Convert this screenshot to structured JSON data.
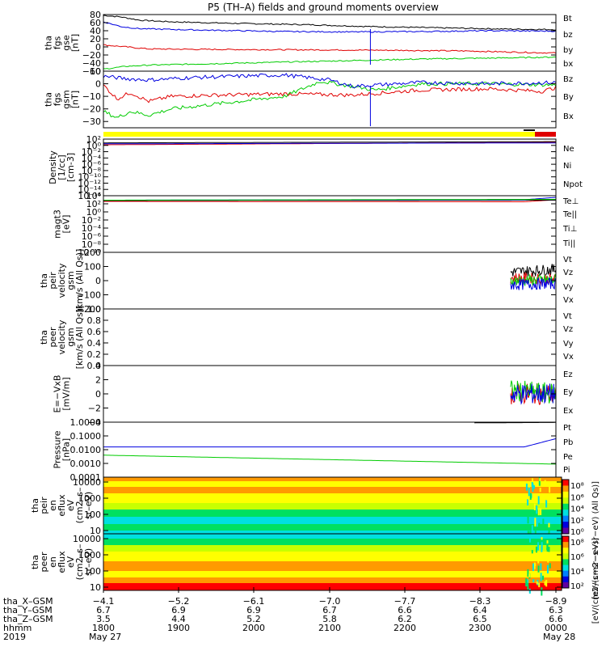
{
  "title": "P5 (TH–A) fields and ground moments overview",
  "colors": {
    "black": "#000000",
    "red": "#e00000",
    "green": "#00cc00",
    "blue": "#0000e0",
    "yellow": "#ffff00",
    "spec_orange": "#ff9a00",
    "spec_yellowgreen": "#c8ff00",
    "spec_green": "#00e060",
    "spec_cyan": "#00e0e0",
    "spec_red": "#ff0000"
  },
  "chart_data": [
    {
      "type": "line",
      "panel": "fgs_gse",
      "ylabel": [
        "tha",
        "fgs",
        "gse",
        "[nT]"
      ],
      "ylim": [
        -60,
        80
      ],
      "yticks": [
        "80",
        "60",
        "40",
        "20",
        "0",
        "−20",
        "−40",
        "−60"
      ],
      "ytick_values": [
        80,
        60,
        40,
        20,
        0,
        -20,
        -40,
        -60
      ],
      "xlim": [
        0,
        1
      ],
      "series": [
        {
          "name": "Bt",
          "color": "#000000",
          "x": [
            0,
            0.04,
            0.08,
            0.15,
            0.3,
            0.45,
            0.6,
            0.7,
            0.8,
            0.9,
            1.0
          ],
          "y": [
            78,
            74,
            66,
            62,
            58,
            55,
            50,
            48,
            46,
            44,
            43
          ]
        },
        {
          "name": "bz",
          "color": "#e00000",
          "x": [
            0,
            0.05,
            0.1,
            0.2,
            0.4,
            0.6,
            0.8,
            0.95,
            1.0
          ],
          "y": [
            5,
            0,
            -5,
            -6,
            -7,
            -8,
            -10,
            -14,
            -15
          ]
        },
        {
          "name": "by",
          "color": "#00cc00",
          "x": [
            0,
            0.05,
            0.1,
            0.3,
            0.5,
            0.7,
            0.9,
            1.0
          ],
          "y": [
            -55,
            -48,
            -45,
            -40,
            -35,
            -30,
            -27,
            -25
          ]
        },
        {
          "name": "bx",
          "color": "#0000e0",
          "x": [
            0,
            0.04,
            0.08,
            0.2,
            0.4,
            0.55,
            0.7,
            0.85,
            1.0
          ],
          "y": [
            62,
            50,
            45,
            42,
            38,
            37,
            38,
            40,
            39
          ]
        }
      ]
    },
    {
      "type": "line",
      "panel": "fgs_gsm",
      "ylabel": [
        "tha",
        "fgs",
        "gsm",
        "[nT]"
      ],
      "ylim": [
        -35,
        10
      ],
      "yticks": [
        "10",
        "0",
        "−10",
        "−20",
        "−30"
      ],
      "ytick_values": [
        10,
        0,
        -10,
        -20,
        -30
      ],
      "xlim": [
        0,
        1
      ],
      "series": [
        {
          "name": "Bz",
          "color": "#e00000",
          "x": [
            0,
            0.03,
            0.06,
            0.1,
            0.15,
            0.25,
            0.4,
            0.55,
            0.7,
            0.85,
            0.97,
            1.0
          ],
          "y": [
            -1,
            -12,
            -7,
            -14,
            -10,
            -9,
            -8,
            -9,
            -5,
            -4,
            -6,
            -3
          ]
        },
        {
          "name": "By",
          "color": "#00cc00",
          "x": [
            0,
            0.03,
            0.06,
            0.1,
            0.15,
            0.25,
            0.4,
            0.48,
            0.6,
            0.7,
            0.85,
            1.0
          ],
          "y": [
            -22,
            -27,
            -22,
            -25,
            -20,
            -16,
            -10,
            2,
            -5,
            0,
            0,
            -1
          ]
        },
        {
          "name": "Bx",
          "color": "#0000e0",
          "x": [
            0,
            0.05,
            0.1,
            0.2,
            0.3,
            0.4,
            0.5,
            0.55,
            0.7,
            0.85,
            1.0
          ],
          "y": [
            6,
            4,
            3,
            5,
            6,
            7,
            3,
            -2,
            1,
            0,
            1
          ]
        }
      ]
    },
    {
      "type": "line",
      "panel": "density",
      "ylabel": [
        "Density",
        "[1/cc]",
        "[cm-3]"
      ],
      "ylim_log": [
        -16,
        2
      ],
      "yticks": [
        "10²",
        "10⁰",
        "10⁻²",
        "10⁻⁴",
        "10⁻⁶",
        "10⁻⁸",
        "10⁻¹⁰",
        "10⁻¹²",
        "10⁻¹⁴",
        "10⁻¹⁶"
      ],
      "ytick_values": [
        2,
        0,
        -2,
        -4,
        -6,
        -8,
        -10,
        -12,
        -14,
        -16
      ],
      "series": [
        {
          "name": "Ne",
          "color": "#e00000",
          "x": [
            0,
            1
          ],
          "y_log": [
            0.2,
            1.0
          ]
        },
        {
          "name": "Ni",
          "color": "#000000",
          "x": [
            0,
            1
          ],
          "y_log": [
            0.8,
            1.2
          ]
        },
        {
          "name": "Npot",
          "color": "#0000e0",
          "x": [
            0,
            1
          ],
          "y_log": [
            0.5,
            0.8
          ]
        }
      ]
    },
    {
      "type": "line",
      "panel": "temperature",
      "ylabel": [
        "magt3",
        "[eV]"
      ],
      "ylim_log": [
        -10,
        4
      ],
      "yticks": [
        "10⁴",
        "10²",
        "10⁰",
        "10⁻²",
        "10⁻⁴",
        "10⁻⁶",
        "10⁻⁸",
        "10⁻¹⁰"
      ],
      "ytick_values": [
        4,
        2,
        0,
        -2,
        -4,
        -6,
        -8,
        -10
      ],
      "series": [
        {
          "name": "Te⊥",
          "color": "#e00000",
          "x": [
            0,
            0.93,
            1
          ],
          "y_log": [
            2.6,
            2.5,
            3.0
          ]
        },
        {
          "name": "Te||",
          "color": "#000000",
          "x": [
            0,
            1
          ],
          "y_log": [
            2.8,
            2.9
          ]
        },
        {
          "name": "Ti⊥",
          "color": "#0000e0",
          "x": [
            0,
            0.93,
            1
          ],
          "y_log": [
            2.9,
            3.0,
            3.6
          ]
        },
        {
          "name": "Ti||",
          "color": "#00cc00",
          "x": [
            0,
            1
          ],
          "y_log": [
            2.9,
            3.1
          ]
        }
      ]
    },
    {
      "type": "line",
      "panel": "peir_velocity",
      "ylabel": [
        "tha",
        "peir",
        "velocity",
        "gsm",
        "[km/s (All Qs)]"
      ],
      "ylim": [
        -200,
        200
      ],
      "yticks": [
        "200",
        "100",
        "0",
        "−100",
        "−200"
      ],
      "ytick_values": [
        200,
        100,
        0,
        -100,
        -200
      ],
      "series": [
        {
          "name": "Vt",
          "color": "#000000",
          "x": [
            0.9,
            1.0
          ],
          "y": [
            60,
            80
          ]
        },
        {
          "name": "Vz",
          "color": "#e00000",
          "x": [
            0.9,
            1.0
          ],
          "y": [
            20,
            10
          ]
        },
        {
          "name": "Vy",
          "color": "#00cc00",
          "x": [
            0.9,
            1.0
          ],
          "y": [
            0,
            5
          ]
        },
        {
          "name": "Vx",
          "color": "#0000e0",
          "x": [
            0.9,
            1.0
          ],
          "y": [
            -30,
            -20
          ]
        }
      ]
    },
    {
      "type": "line",
      "panel": "peer_velocity",
      "ylabel": [
        "tha",
        "peer",
        "velocity",
        "gsm",
        "[km/s (All Qs)]"
      ],
      "ylim": [
        0.0,
        1.0
      ],
      "yticks": [
        "1.0",
        "0.8",
        "0.6",
        "0.4",
        "0.2",
        "0.0"
      ],
      "ytick_values": [
        1.0,
        0.8,
        0.6,
        0.4,
        0.2,
        0.0
      ],
      "series": [
        {
          "name": "Vt",
          "color": "#000000",
          "x": [],
          "y": []
        },
        {
          "name": "Vz",
          "color": "#e00000",
          "x": [],
          "y": []
        },
        {
          "name": "Vy",
          "color": "#00cc00",
          "x": [],
          "y": []
        },
        {
          "name": "Vx",
          "color": "#0000e0",
          "x": [],
          "y": []
        }
      ]
    },
    {
      "type": "line",
      "panel": "efield",
      "ylabel": [
        "E=−VxB",
        "[mV/m]"
      ],
      "ylim": [
        -4,
        4
      ],
      "yticks": [
        "4",
        "2",
        "0",
        "−2",
        "−4"
      ],
      "ytick_values": [
        4,
        2,
        0,
        -2,
        -4
      ],
      "series": [
        {
          "name": "Ez",
          "color": "#e00000",
          "x": [
            0.9,
            1.0
          ],
          "y": [
            0,
            0
          ]
        },
        {
          "name": "Ey",
          "color": "#00cc00",
          "x": [
            0.9,
            1.0
          ],
          "y": [
            0.5,
            0
          ]
        },
        {
          "name": "Ex",
          "color": "#0000e0",
          "x": [
            0.9,
            1.0
          ],
          "y": [
            0,
            0
          ]
        }
      ]
    },
    {
      "type": "line",
      "panel": "pressure",
      "ylabel": [
        "Pressure",
        "[nPa]"
      ],
      "ylim_log": [
        -4,
        0
      ],
      "yticks": [
        "1.0000",
        "0.1000",
        "0.0100",
        "0.0010",
        "0.0001"
      ],
      "ytick_values": [
        0,
        -1,
        -2,
        -3,
        -4
      ],
      "series": [
        {
          "name": "Pt",
          "color": "#000000",
          "x": [
            0.82,
            1.0
          ],
          "y_log": [
            -0.05,
            -0.02
          ]
        },
        {
          "name": "Pb",
          "color": "#e00000",
          "x": [],
          "y_log": []
        },
        {
          "name": "Pe",
          "color": "#00cc00",
          "x": [
            0,
            1
          ],
          "y_log": [
            -2.4,
            -3.05
          ]
        },
        {
          "name": "Pi",
          "color": "#0000e0",
          "x": [
            0,
            0.93,
            1
          ],
          "y_log": [
            -1.8,
            -1.8,
            -1.2
          ]
        }
      ]
    },
    {
      "type": "heatmap",
      "panel": "peir_spectrogram",
      "ylabel": [
        "tha",
        "peir",
        "en",
        "eflux",
        "eV",
        "(cm2–s–",
        "sr–eV)"
      ],
      "yticks": [
        "10000",
        "1000",
        "100",
        "10"
      ],
      "ytick_values": [
        4,
        3,
        2,
        1
      ],
      "ylim_log": [
        0.8,
        4.3
      ],
      "colorbar_ticks": [
        "10⁸",
        "10⁶",
        "10⁴",
        "10²",
        "10⁰"
      ],
      "colorbar_label": "[eV/(cm2−s−sr−eV) (All Qs)]"
    },
    {
      "type": "heatmap",
      "panel": "peer_spectrogram",
      "ylabel": [
        "tha",
        "peer",
        "en",
        "eflux",
        "eV",
        "(cm2–s–",
        "sr–eV)"
      ],
      "yticks": [
        "10000",
        "1000",
        "100",
        "10"
      ],
      "ytick_values": [
        4,
        3,
        2,
        1
      ],
      "ylim_log": [
        0.8,
        4.3
      ],
      "colorbar_ticks": [
        "10⁸",
        "10⁶",
        "10⁴",
        "10²"
      ],
      "colorbar_label": "[eV/(cm2−s−sr−eV)]"
    }
  ],
  "xaxis": {
    "rows": [
      {
        "label": "tha_X–GSM",
        "values": [
          "−4.1",
          "−5.2",
          "−6.1",
          "−7.0",
          "−7.7",
          "−8.3",
          "−8.9"
        ]
      },
      {
        "label": "tha_Y–GSM",
        "values": [
          "6.7",
          "6.9",
          "6.9",
          "6.7",
          "6.6",
          "6.4",
          "6.3"
        ]
      },
      {
        "label": "tha_Z–GSM",
        "values": [
          "3.5",
          "4.4",
          "5.2",
          "5.8",
          "6.2",
          "6.5",
          "6.6"
        ]
      },
      {
        "label": "hhmm",
        "values": [
          "1800",
          "1900",
          "2000",
          "2100",
          "2200",
          "2300",
          "0000"
        ]
      }
    ],
    "year": "2019",
    "date_start": "May 27",
    "date_end": "May 28"
  }
}
